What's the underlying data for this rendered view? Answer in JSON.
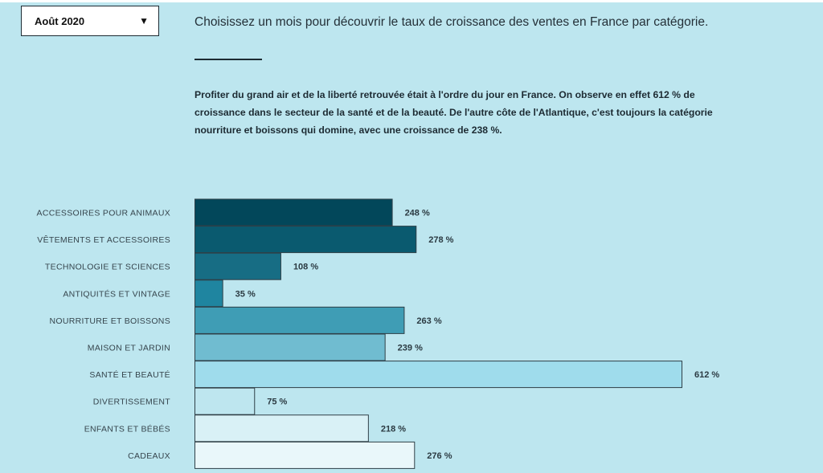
{
  "month_selector": {
    "selected": "Août 2020",
    "arrow_icon": "triangle-down-icon"
  },
  "intro": "Choisissez un mois pour découvrir le taux de croissance des ventes en France par catégorie.",
  "description": "Profiter du grand air et de la liberté retrouvée était à l'ordre du jour en France. On observe en effet 612 % de croissance dans le secteur de la santé et de la beauté. De l'autre côte de l'Atlantique, c'est toujours la catégorie nourriture et boissons qui domine, avec une croissance de 238 %.",
  "chart_data": {
    "type": "bar",
    "orientation": "horizontal",
    "categories": [
      "ACCESSOIRES POUR ANIMAUX",
      "VÊTEMENTS ET ACCESSOIRES",
      "TECHNOLOGIE ET SCIENCES",
      "ANTIQUITÉS ET VINTAGE",
      "NOURRITURE ET BOISSONS",
      "MAISON ET JARDIN",
      "SANTÉ ET BEAUTÉ",
      "DIVERTISSEMENT",
      "ENFANTS ET BÉBÉS",
      "CADEAUX"
    ],
    "values": [
      248,
      278,
      108,
      35,
      263,
      239,
      612,
      75,
      218,
      276
    ],
    "value_labels": [
      "248 %",
      "278 %",
      "108 %",
      "35 %",
      "263 %",
      "239 %",
      "612 %",
      "75 %",
      "218 %",
      "276 %"
    ],
    "colors": [
      "#02475a",
      "#0a5a6f",
      "#176d84",
      "#1f85a0",
      "#3f9db5",
      "#70bcd0",
      "#9fdcec",
      "#bee6ef",
      "#d9f1f6",
      "#e9f7fa"
    ],
    "xlim": [
      0,
      612
    ],
    "unit": "%",
    "grid": false,
    "legend": "none"
  }
}
